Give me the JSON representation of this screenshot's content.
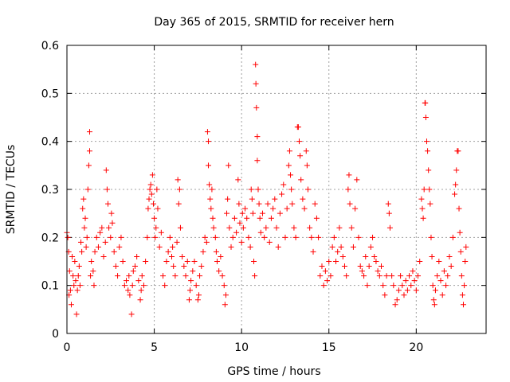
{
  "chart_data": {
    "type": "scatter",
    "title": "Day 365 of 2015, SRMTID for receiver hern",
    "xlabel": "GPS time / hours",
    "ylabel": "SRMTID / TECUs",
    "xlim": [
      0,
      24
    ],
    "ylim": [
      0,
      0.6
    ],
    "xticks": [
      0,
      5,
      10,
      15,
      20
    ],
    "xtick_labels": [
      "0",
      "5",
      "10",
      "15",
      "20"
    ],
    "yticks": [
      0,
      0.1,
      0.2,
      0.3,
      0.4,
      0.5,
      0.6
    ],
    "ytick_labels": [
      "0",
      "0.1",
      "0.2",
      "0.3",
      "0.4",
      "0.5",
      "0.6"
    ],
    "grid": true,
    "marker": "+",
    "color": "#ff0000",
    "series": [
      {
        "name": "SRMTID",
        "points": [
          [
            0.0,
            0.21
          ],
          [
            0.05,
            0.2
          ],
          [
            0.1,
            0.17
          ],
          [
            0.12,
            0.08
          ],
          [
            0.15,
            0.13
          ],
          [
            0.2,
            0.09
          ],
          [
            0.25,
            0.06
          ],
          [
            0.3,
            0.16
          ],
          [
            0.35,
            0.12
          ],
          [
            0.4,
            0.1
          ],
          [
            0.45,
            0.15
          ],
          [
            0.5,
            0.11
          ],
          [
            0.55,
            0.04
          ],
          [
            0.6,
            0.09
          ],
          [
            0.65,
            0.12
          ],
          [
            0.7,
            0.14
          ],
          [
            0.75,
            0.1
          ],
          [
            0.8,
            0.19
          ],
          [
            0.85,
            0.17
          ],
          [
            0.9,
            0.26
          ],
          [
            0.95,
            0.28
          ],
          [
            1.0,
            0.22
          ],
          [
            1.05,
            0.24
          ],
          [
            1.1,
            0.18
          ],
          [
            1.15,
            0.2
          ],
          [
            1.2,
            0.3
          ],
          [
            1.25,
            0.35
          ],
          [
            1.3,
            0.42
          ],
          [
            1.3,
            0.38
          ],
          [
            1.35,
            0.12
          ],
          [
            1.4,
            0.15
          ],
          [
            1.5,
            0.13
          ],
          [
            1.55,
            0.1
          ],
          [
            1.6,
            0.17
          ],
          [
            1.7,
            0.2
          ],
          [
            1.8,
            0.18
          ],
          [
            1.9,
            0.21
          ],
          [
            2.0,
            0.22
          ],
          [
            2.1,
            0.16
          ],
          [
            2.2,
            0.19
          ],
          [
            2.25,
            0.34
          ],
          [
            2.3,
            0.3
          ],
          [
            2.35,
            0.27
          ],
          [
            2.4,
            0.22
          ],
          [
            2.5,
            0.2
          ],
          [
            2.55,
            0.25
          ],
          [
            2.6,
            0.23
          ],
          [
            2.7,
            0.17
          ],
          [
            2.8,
            0.14
          ],
          [
            2.9,
            0.12
          ],
          [
            3.0,
            0.18
          ],
          [
            3.1,
            0.2
          ],
          [
            3.2,
            0.15
          ],
          [
            3.3,
            0.1
          ],
          [
            3.4,
            0.11
          ],
          [
            3.5,
            0.09
          ],
          [
            3.55,
            0.12
          ],
          [
            3.6,
            0.08
          ],
          [
            3.7,
            0.04
          ],
          [
            3.75,
            0.1
          ],
          [
            3.8,
            0.13
          ],
          [
            3.9,
            0.14
          ],
          [
            4.0,
            0.16
          ],
          [
            4.1,
            0.11
          ],
          [
            4.2,
            0.07
          ],
          [
            4.25,
            0.09
          ],
          [
            4.3,
            0.12
          ],
          [
            4.4,
            0.1
          ],
          [
            4.5,
            0.15
          ],
          [
            4.6,
            0.2
          ],
          [
            4.65,
            0.26
          ],
          [
            4.7,
            0.28
          ],
          [
            4.75,
            0.3
          ],
          [
            4.8,
            0.31
          ],
          [
            4.85,
            0.29
          ],
          [
            4.9,
            0.33
          ],
          [
            4.95,
            0.27
          ],
          [
            5.0,
            0.24
          ],
          [
            5.05,
            0.2
          ],
          [
            5.1,
            0.22
          ],
          [
            5.15,
            0.3
          ],
          [
            5.2,
            0.26
          ],
          [
            5.3,
            0.18
          ],
          [
            5.4,
            0.21
          ],
          [
            5.5,
            0.12
          ],
          [
            5.6,
            0.1
          ],
          [
            5.7,
            0.15
          ],
          [
            5.8,
            0.17
          ],
          [
            5.9,
            0.2
          ],
          [
            6.0,
            0.16
          ],
          [
            6.05,
            0.18
          ],
          [
            6.1,
            0.14
          ],
          [
            6.2,
            0.12
          ],
          [
            6.3,
            0.19
          ],
          [
            6.35,
            0.32
          ],
          [
            6.4,
            0.27
          ],
          [
            6.45,
            0.3
          ],
          [
            6.5,
            0.22
          ],
          [
            6.6,
            0.16
          ],
          [
            6.7,
            0.14
          ],
          [
            6.8,
            0.12
          ],
          [
            6.9,
            0.15
          ],
          [
            7.0,
            0.07
          ],
          [
            7.05,
            0.09
          ],
          [
            7.1,
            0.11
          ],
          [
            7.2,
            0.13
          ],
          [
            7.3,
            0.15
          ],
          [
            7.4,
            0.1
          ],
          [
            7.5,
            0.07
          ],
          [
            7.55,
            0.08
          ],
          [
            7.6,
            0.12
          ],
          [
            7.7,
            0.14
          ],
          [
            7.8,
            0.17
          ],
          [
            7.9,
            0.2
          ],
          [
            8.0,
            0.19
          ],
          [
            8.05,
            0.42
          ],
          [
            8.1,
            0.4
          ],
          [
            8.1,
            0.35
          ],
          [
            8.15,
            0.31
          ],
          [
            8.2,
            0.28
          ],
          [
            8.25,
            0.26
          ],
          [
            8.3,
            0.3
          ],
          [
            8.35,
            0.24
          ],
          [
            8.4,
            0.22
          ],
          [
            8.5,
            0.2
          ],
          [
            8.55,
            0.17
          ],
          [
            8.6,
            0.15
          ],
          [
            8.7,
            0.13
          ],
          [
            8.8,
            0.16
          ],
          [
            8.9,
            0.12
          ],
          [
            9.0,
            0.1
          ],
          [
            9.05,
            0.06
          ],
          [
            9.1,
            0.08
          ],
          [
            9.15,
            0.25
          ],
          [
            9.2,
            0.28
          ],
          [
            9.25,
            0.35
          ],
          [
            9.3,
            0.22
          ],
          [
            9.4,
            0.18
          ],
          [
            9.5,
            0.2
          ],
          [
            9.6,
            0.24
          ],
          [
            9.7,
            0.21
          ],
          [
            9.8,
            0.32
          ],
          [
            9.85,
            0.27
          ],
          [
            9.9,
            0.23
          ],
          [
            10.0,
            0.19
          ],
          [
            10.05,
            0.25
          ],
          [
            10.1,
            0.22
          ],
          [
            10.2,
            0.26
          ],
          [
            10.3,
            0.24
          ],
          [
            10.4,
            0.2
          ],
          [
            10.5,
            0.18
          ],
          [
            10.55,
            0.3
          ],
          [
            10.6,
            0.28
          ],
          [
            10.65,
            0.25
          ],
          [
            10.7,
            0.15
          ],
          [
            10.75,
            0.12
          ],
          [
            10.8,
            0.56
          ],
          [
            10.82,
            0.52
          ],
          [
            10.85,
            0.47
          ],
          [
            10.9,
            0.41
          ],
          [
            10.9,
            0.36
          ],
          [
            10.95,
            0.3
          ],
          [
            11.0,
            0.27
          ],
          [
            11.05,
            0.24
          ],
          [
            11.1,
            0.21
          ],
          [
            11.2,
            0.25
          ],
          [
            11.3,
            0.2
          ],
          [
            11.4,
            0.22
          ],
          [
            11.5,
            0.27
          ],
          [
            11.6,
            0.19
          ],
          [
            11.7,
            0.24
          ],
          [
            11.8,
            0.26
          ],
          [
            11.9,
            0.28
          ],
          [
            12.0,
            0.22
          ],
          [
            12.1,
            0.18
          ],
          [
            12.2,
            0.25
          ],
          [
            12.3,
            0.29
          ],
          [
            12.4,
            0.31
          ],
          [
            12.5,
            0.2
          ],
          [
            12.6,
            0.26
          ],
          [
            12.7,
            0.35
          ],
          [
            12.75,
            0.38
          ],
          [
            12.8,
            0.33
          ],
          [
            12.85,
            0.3
          ],
          [
            12.9,
            0.27
          ],
          [
            13.0,
            0.22
          ],
          [
            13.1,
            0.2
          ],
          [
            13.2,
            0.43
          ],
          [
            13.25,
            0.43
          ],
          [
            13.3,
            0.4
          ],
          [
            13.35,
            0.37
          ],
          [
            13.4,
            0.32
          ],
          [
            13.5,
            0.28
          ],
          [
            13.6,
            0.26
          ],
          [
            13.7,
            0.38
          ],
          [
            13.75,
            0.35
          ],
          [
            13.8,
            0.3
          ],
          [
            13.9,
            0.22
          ],
          [
            14.0,
            0.2
          ],
          [
            14.1,
            0.17
          ],
          [
            14.2,
            0.27
          ],
          [
            14.3,
            0.24
          ],
          [
            14.4,
            0.2
          ],
          [
            14.5,
            0.12
          ],
          [
            14.6,
            0.14
          ],
          [
            14.7,
            0.1
          ],
          [
            14.8,
            0.13
          ],
          [
            14.9,
            0.11
          ],
          [
            15.0,
            0.15
          ],
          [
            15.1,
            0.12
          ],
          [
            15.2,
            0.18
          ],
          [
            15.3,
            0.2
          ],
          [
            15.4,
            0.15
          ],
          [
            15.5,
            0.17
          ],
          [
            15.6,
            0.22
          ],
          [
            15.7,
            0.18
          ],
          [
            15.8,
            0.16
          ],
          [
            15.9,
            0.14
          ],
          [
            16.0,
            0.12
          ],
          [
            16.1,
            0.3
          ],
          [
            16.15,
            0.33
          ],
          [
            16.2,
            0.27
          ],
          [
            16.3,
            0.22
          ],
          [
            16.4,
            0.18
          ],
          [
            16.5,
            0.26
          ],
          [
            16.6,
            0.32
          ],
          [
            16.7,
            0.2
          ],
          [
            16.8,
            0.14
          ],
          [
            16.9,
            0.13
          ],
          [
            17.0,
            0.12
          ],
          [
            17.1,
            0.16
          ],
          [
            17.2,
            0.1
          ],
          [
            17.3,
            0.14
          ],
          [
            17.4,
            0.18
          ],
          [
            17.5,
            0.2
          ],
          [
            17.6,
            0.16
          ],
          [
            17.7,
            0.15
          ],
          [
            17.8,
            0.13
          ],
          [
            17.9,
            0.12
          ],
          [
            18.0,
            0.14
          ],
          [
            18.1,
            0.1
          ],
          [
            18.2,
            0.08
          ],
          [
            18.3,
            0.12
          ],
          [
            18.4,
            0.27
          ],
          [
            18.45,
            0.25
          ],
          [
            18.5,
            0.22
          ],
          [
            18.6,
            0.12
          ],
          [
            18.7,
            0.1
          ],
          [
            18.8,
            0.06
          ],
          [
            18.9,
            0.07
          ],
          [
            19.0,
            0.09
          ],
          [
            19.1,
            0.12
          ],
          [
            19.2,
            0.1
          ],
          [
            19.3,
            0.08
          ],
          [
            19.4,
            0.11
          ],
          [
            19.5,
            0.09
          ],
          [
            19.6,
            0.12
          ],
          [
            19.7,
            0.1
          ],
          [
            19.8,
            0.13
          ],
          [
            19.9,
            0.11
          ],
          [
            20.0,
            0.09
          ],
          [
            20.1,
            0.12
          ],
          [
            20.2,
            0.15
          ],
          [
            20.3,
            0.28
          ],
          [
            20.35,
            0.26
          ],
          [
            20.4,
            0.24
          ],
          [
            20.45,
            0.3
          ],
          [
            20.5,
            0.48
          ],
          [
            20.52,
            0.48
          ],
          [
            20.55,
            0.45
          ],
          [
            20.6,
            0.4
          ],
          [
            20.65,
            0.38
          ],
          [
            20.7,
            0.34
          ],
          [
            20.75,
            0.3
          ],
          [
            20.8,
            0.27
          ],
          [
            20.85,
            0.2
          ],
          [
            20.9,
            0.16
          ],
          [
            20.95,
            0.1
          ],
          [
            21.0,
            0.07
          ],
          [
            21.05,
            0.06
          ],
          [
            21.1,
            0.09
          ],
          [
            21.2,
            0.12
          ],
          [
            21.3,
            0.15
          ],
          [
            21.4,
            0.11
          ],
          [
            21.5,
            0.08
          ],
          [
            21.6,
            0.13
          ],
          [
            21.7,
            0.1
          ],
          [
            21.8,
            0.12
          ],
          [
            21.9,
            0.16
          ],
          [
            22.0,
            0.14
          ],
          [
            22.1,
            0.2
          ],
          [
            22.2,
            0.29
          ],
          [
            22.25,
            0.31
          ],
          [
            22.3,
            0.34
          ],
          [
            22.35,
            0.38
          ],
          [
            22.4,
            0.38
          ],
          [
            22.45,
            0.26
          ],
          [
            22.5,
            0.21
          ],
          [
            22.55,
            0.17
          ],
          [
            22.6,
            0.12
          ],
          [
            22.65,
            0.08
          ],
          [
            22.7,
            0.06
          ],
          [
            22.75,
            0.1
          ],
          [
            22.8,
            0.15
          ],
          [
            22.85,
            0.18
          ]
        ]
      }
    ]
  }
}
